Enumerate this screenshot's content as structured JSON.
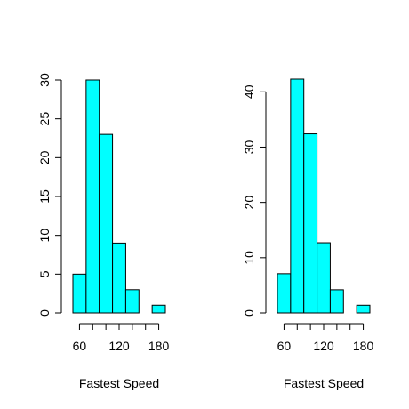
{
  "chart_data": [
    {
      "type": "bar",
      "xlabel": "Fastest Speed",
      "ylabel": "",
      "bin_edges": [
        50,
        70,
        90,
        110,
        130,
        150,
        170,
        190
      ],
      "values": [
        5,
        30,
        23,
        9,
        3,
        0,
        1
      ],
      "xticks": [
        60,
        120,
        180
      ],
      "xlim": [
        50,
        190
      ],
      "yticks": [
        0,
        5,
        10,
        15,
        20,
        25,
        30
      ],
      "ylim": [
        0,
        30
      ],
      "bar_color": "#00FFFF",
      "grid": false
    },
    {
      "type": "bar",
      "xlabel": "Fastest Speed",
      "ylabel": "",
      "bin_edges": [
        50,
        70,
        90,
        110,
        130,
        150,
        170,
        190
      ],
      "values": [
        7.1,
        42.3,
        32.4,
        12.7,
        4.2,
        0,
        1.4
      ],
      "xticks": [
        60,
        120,
        180
      ],
      "xlim": [
        50,
        190
      ],
      "yticks": [
        0,
        10,
        20,
        30,
        40
      ],
      "ylim": [
        0,
        42.3
      ],
      "bar_color": "#00FFFF",
      "grid": false
    }
  ]
}
